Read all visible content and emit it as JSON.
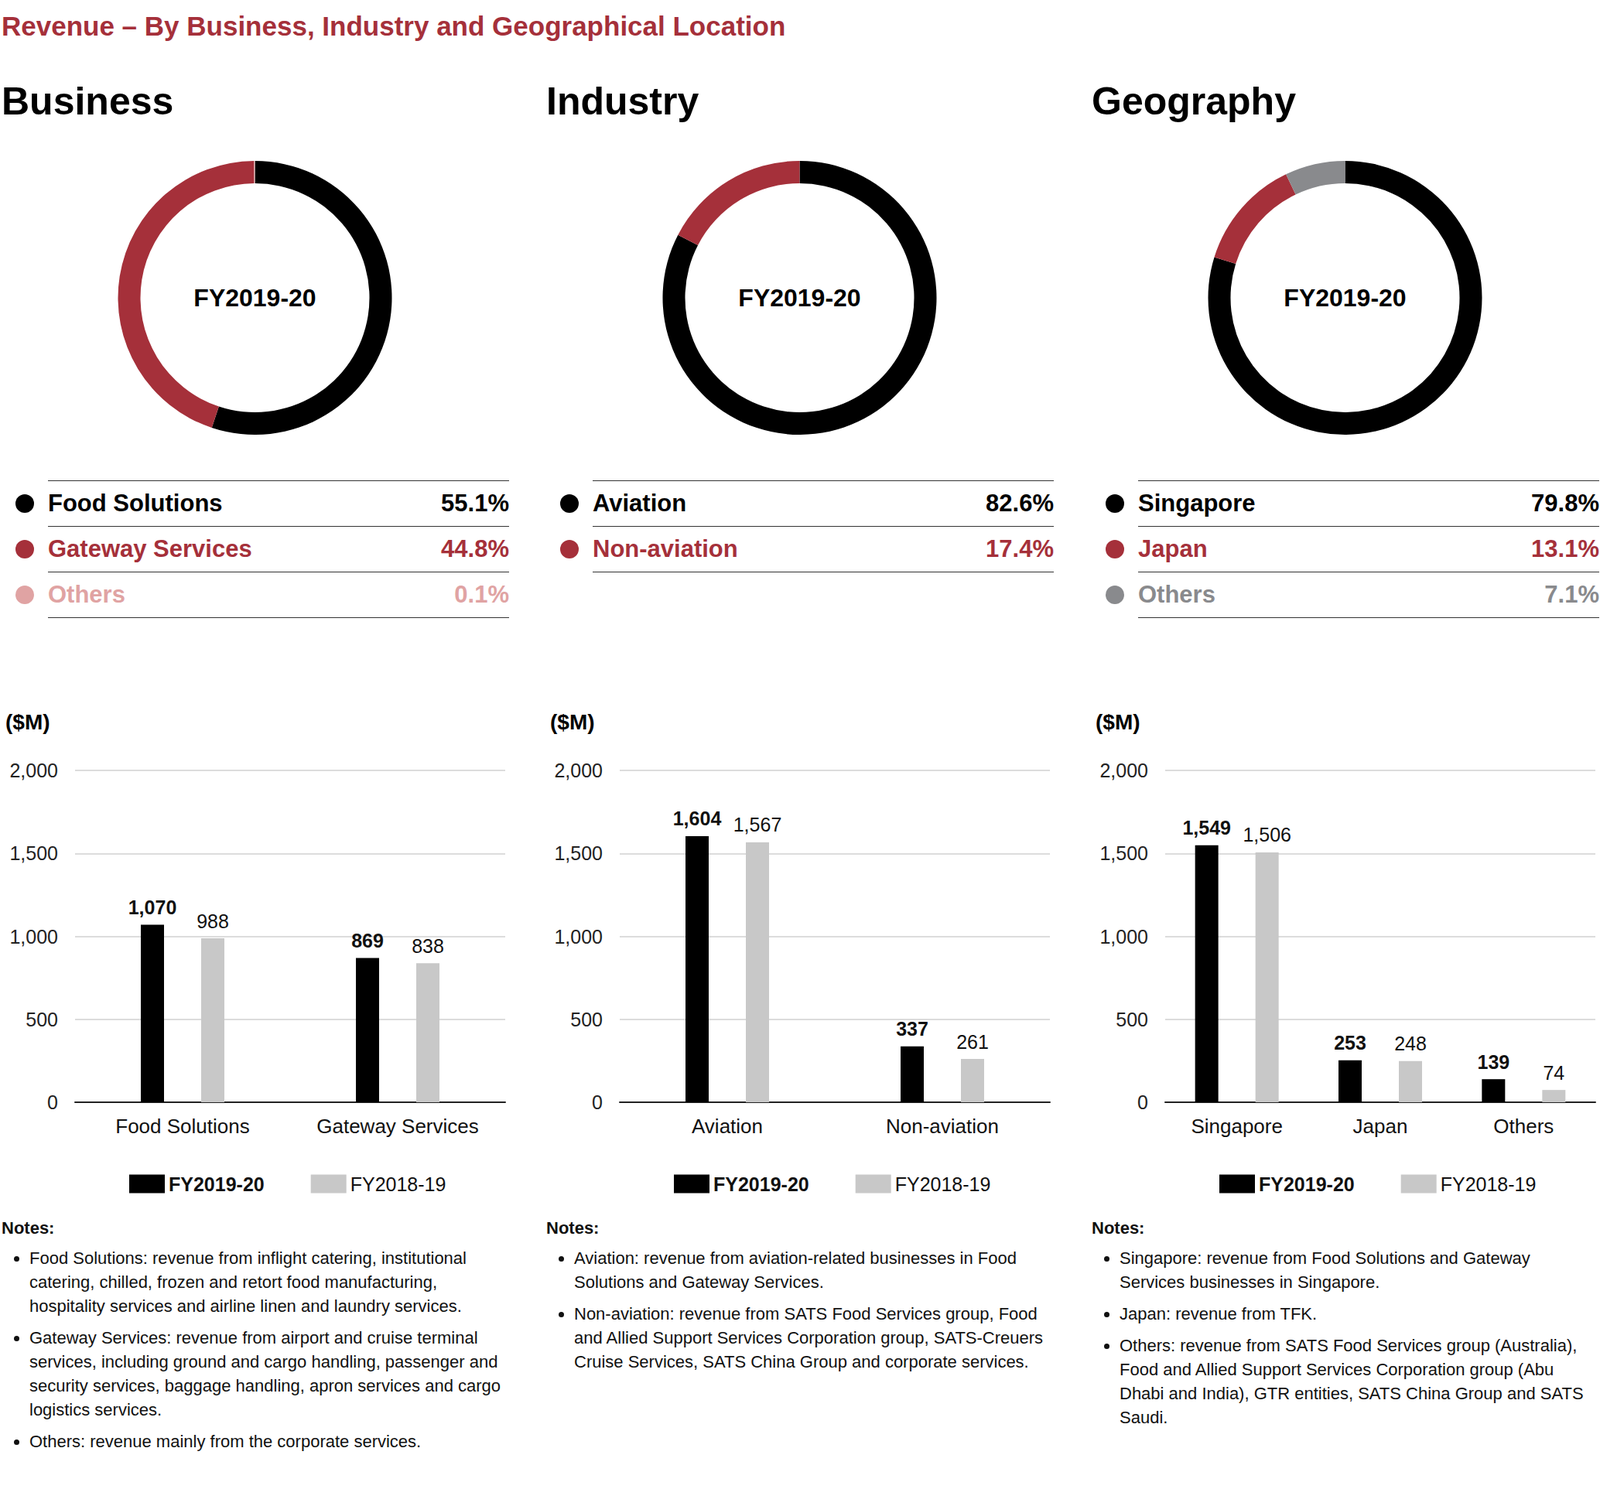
{
  "title": "Revenue – By Business, Industry and Geographical Location",
  "chart_data": [
    {
      "type": "pie",
      "title": "Business",
      "center_label": "FY2019-20",
      "categories": [
        "Food Solutions",
        "Gateway Services",
        "Others"
      ],
      "values": [
        55.1,
        44.8,
        0.1
      ],
      "value_labels": [
        "55.1%",
        "44.8%",
        "0.1%"
      ],
      "colors": [
        "#000000",
        "#a5303a",
        "#e0a3a3"
      ],
      "legend": "bottom"
    },
    {
      "type": "bar",
      "ylabel": "($M)",
      "categories": [
        "Food Solutions",
        "Gateway Services"
      ],
      "series": [
        {
          "name": "FY2019-20",
          "color": "#000000",
          "values": [
            1070,
            869
          ],
          "value_labels": [
            "1,070",
            "869"
          ]
        },
        {
          "name": "FY2018-19",
          "color": "#c8c8c8",
          "values": [
            988,
            838
          ]
        }
      ],
      "ylim": [
        0,
        2000
      ],
      "yticks": [
        0,
        500,
        {
          "value": 1000,
          "label": "1,000"
        },
        {
          "value": 1500,
          "label": "1,500"
        },
        {
          "value": 2000,
          "label": "2,000"
        }
      ],
      "grid": true,
      "legend": "bottom",
      "data_labels": true
    },
    {
      "type": "pie",
      "title": "Industry",
      "center_label": "FY2019-20",
      "categories": [
        "Aviation",
        "Non-aviation"
      ],
      "values": [
        82.6,
        17.4
      ],
      "value_labels": [
        "82.6%",
        "17.4%"
      ],
      "colors": [
        "#000000",
        "#a5303a"
      ],
      "legend": "bottom"
    },
    {
      "type": "bar",
      "ylabel": "($M)",
      "categories": [
        "Aviation",
        "Non-aviation"
      ],
      "series": [
        {
          "name": "FY2019-20",
          "color": "#000000",
          "values": [
            1604,
            337
          ],
          "value_labels": [
            "1,604",
            "337"
          ]
        },
        {
          "name": "FY2018-19",
          "color": "#c8c8c8",
          "values": [
            1567,
            261
          ],
          "value_labels": [
            "1,567",
            "261"
          ]
        }
      ],
      "ylim": [
        0,
        2000
      ],
      "yticks": [
        0,
        500,
        {
          "value": 1000,
          "label": "1,000"
        },
        {
          "value": 1500,
          "label": "1,500"
        },
        {
          "value": 2000,
          "label": "2,000"
        }
      ],
      "grid": true,
      "legend": "bottom",
      "data_labels": true
    },
    {
      "type": "pie",
      "title": "Geography",
      "center_label": "FY2019-20",
      "categories": [
        "Singapore",
        "Japan",
        "Others"
      ],
      "values": [
        79.8,
        13.1,
        7.1
      ],
      "value_labels": [
        "79.8%",
        "13.1%",
        "7.1%"
      ],
      "colors": [
        "#000000",
        "#a5303a",
        "#898a8d"
      ],
      "legend": "bottom"
    },
    {
      "type": "bar",
      "ylabel": "($M)",
      "categories": [
        "Singapore",
        "Japan",
        "Others"
      ],
      "series": [
        {
          "name": "FY2019-20",
          "color": "#000000",
          "values": [
            1549,
            253,
            139
          ],
          "value_labels": [
            "1,549",
            "253",
            "139"
          ]
        },
        {
          "name": "FY2018-19",
          "color": "#c8c8c8",
          "values": [
            1506,
            248,
            74
          ],
          "value_labels": [
            "1,506",
            "248",
            "74"
          ]
        }
      ],
      "ylim": [
        0,
        2000
      ],
      "yticks": [
        0,
        500,
        {
          "value": 1000,
          "label": "1,000"
        },
        {
          "value": 1500,
          "label": "1,500"
        },
        {
          "value": 2000,
          "label": "2,000"
        }
      ],
      "grid": true,
      "legend": "bottom",
      "data_labels": true
    }
  ],
  "notes": [
    {
      "heading": "Notes:",
      "items": [
        "Food Solutions: revenue from inflight catering, institutional catering, chilled, frozen and retort food manufacturing, hospitality services and airline linen and laundry services.",
        "Gateway Services: revenue from airport and cruise terminal services, including ground and cargo handling, passenger and security services, baggage handling, apron services and cargo logistics services.",
        "Others: revenue mainly from the corporate services."
      ]
    },
    {
      "heading": "Notes:",
      "items": [
        "Aviation: revenue from aviation-related businesses in Food Solutions and Gateway Services.",
        "Non-aviation: revenue from SATS Food Services group, Food and Allied Support Services Corporation group, SATS-Creuers Cruise Services, SATS China Group and corporate services."
      ]
    },
    {
      "heading": "Notes:",
      "items": [
        "Singapore: revenue from Food Solutions and Gateway Services businesses in Singapore.",
        "Japan: revenue from TFK.",
        "Others: revenue from SATS Food Services group (Australia), Food and Allied Support Services Corporation group (Abu Dhabi and India), GTR entities, SATS China Group and SATS Saudi."
      ]
    }
  ]
}
